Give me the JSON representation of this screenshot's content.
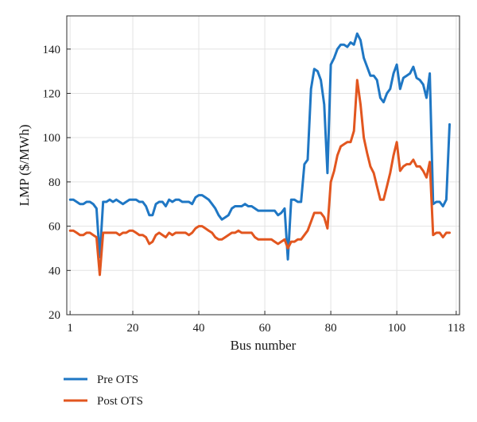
{
  "chart_data": {
    "type": "line",
    "title": "",
    "xlabel": "Bus number",
    "ylabel": "LMP ($/MWh)",
    "xlim": [
      0,
      119
    ],
    "ylim": [
      20,
      155
    ],
    "xticks": [
      1,
      20,
      40,
      60,
      80,
      100,
      118
    ],
    "yticks": [
      20,
      40,
      60,
      80,
      100,
      120,
      140
    ],
    "grid": true,
    "legend_position": "bottom-left",
    "series": [
      {
        "name": "Pre OTS",
        "color": "#1f77c4",
        "points": [
          [
            1,
            72
          ],
          [
            2,
            72
          ],
          [
            3,
            71
          ],
          [
            4,
            70
          ],
          [
            5,
            70
          ],
          [
            6,
            71
          ],
          [
            7,
            71
          ],
          [
            8,
            70
          ],
          [
            9,
            68
          ],
          [
            10,
            46
          ],
          [
            11,
            71
          ],
          [
            12,
            71
          ],
          [
            13,
            72
          ],
          [
            14,
            71
          ],
          [
            15,
            72
          ],
          [
            16,
            71
          ],
          [
            17,
            70
          ],
          [
            18,
            71
          ],
          [
            19,
            72
          ],
          [
            20,
            72
          ],
          [
            21,
            72
          ],
          [
            22,
            71
          ],
          [
            23,
            71
          ],
          [
            24,
            69
          ],
          [
            25,
            65
          ],
          [
            26,
            65
          ],
          [
            27,
            70
          ],
          [
            28,
            71
          ],
          [
            29,
            71
          ],
          [
            30,
            69
          ],
          [
            31,
            72
          ],
          [
            32,
            71
          ],
          [
            33,
            72
          ],
          [
            34,
            72
          ],
          [
            35,
            71
          ],
          [
            36,
            71
          ],
          [
            37,
            71
          ],
          [
            38,
            70
          ],
          [
            39,
            73
          ],
          [
            40,
            74
          ],
          [
            41,
            74
          ],
          [
            42,
            73
          ],
          [
            43,
            72
          ],
          [
            44,
            70
          ],
          [
            45,
            68
          ],
          [
            46,
            65
          ],
          [
            47,
            63
          ],
          [
            48,
            64
          ],
          [
            49,
            65
          ],
          [
            50,
            68
          ],
          [
            51,
            69
          ],
          [
            52,
            69
          ],
          [
            53,
            69
          ],
          [
            54,
            70
          ],
          [
            55,
            69
          ],
          [
            56,
            69
          ],
          [
            57,
            68
          ],
          [
            58,
            67
          ],
          [
            59,
            67
          ],
          [
            60,
            67
          ],
          [
            61,
            67
          ],
          [
            62,
            67
          ],
          [
            63,
            67
          ],
          [
            64,
            65
          ],
          [
            65,
            66
          ],
          [
            66,
            68
          ],
          [
            67,
            45
          ],
          [
            68,
            72
          ],
          [
            69,
            72
          ],
          [
            70,
            71
          ],
          [
            71,
            71
          ],
          [
            72,
            88
          ],
          [
            73,
            90
          ],
          [
            74,
            122
          ],
          [
            75,
            131
          ],
          [
            76,
            130
          ],
          [
            77,
            126
          ],
          [
            78,
            115
          ],
          [
            79,
            84
          ],
          [
            80,
            133
          ],
          [
            81,
            136
          ],
          [
            82,
            140
          ],
          [
            83,
            142
          ],
          [
            84,
            142
          ],
          [
            85,
            141
          ],
          [
            86,
            143
          ],
          [
            87,
            142
          ],
          [
            88,
            147
          ],
          [
            89,
            144
          ],
          [
            90,
            136
          ],
          [
            91,
            132
          ],
          [
            92,
            128
          ],
          [
            93,
            128
          ],
          [
            94,
            126
          ],
          [
            95,
            118
          ],
          [
            96,
            116
          ],
          [
            97,
            120
          ],
          [
            98,
            122
          ],
          [
            99,
            129
          ],
          [
            100,
            133
          ],
          [
            101,
            122
          ],
          [
            102,
            127
          ],
          [
            103,
            128
          ],
          [
            104,
            129
          ],
          [
            105,
            132
          ],
          [
            106,
            127
          ],
          [
            107,
            126
          ],
          [
            108,
            124
          ],
          [
            109,
            118
          ],
          [
            110,
            129
          ],
          [
            111,
            70
          ],
          [
            112,
            71
          ],
          [
            113,
            71
          ],
          [
            114,
            69
          ],
          [
            115,
            72
          ],
          [
            116,
            106
          ]
        ]
      },
      {
        "name": "Post OTS",
        "color": "#e2561f",
        "points": [
          [
            1,
            58
          ],
          [
            2,
            58
          ],
          [
            3,
            57
          ],
          [
            4,
            56
          ],
          [
            5,
            56
          ],
          [
            6,
            57
          ],
          [
            7,
            57
          ],
          [
            8,
            56
          ],
          [
            9,
            55
          ],
          [
            10,
            38
          ],
          [
            11,
            57
          ],
          [
            12,
            57
          ],
          [
            13,
            57
          ],
          [
            14,
            57
          ],
          [
            15,
            57
          ],
          [
            16,
            56
          ],
          [
            17,
            57
          ],
          [
            18,
            57
          ],
          [
            19,
            58
          ],
          [
            20,
            58
          ],
          [
            21,
            57
          ],
          [
            22,
            56
          ],
          [
            23,
            56
          ],
          [
            24,
            55
          ],
          [
            25,
            52
          ],
          [
            26,
            53
          ],
          [
            27,
            56
          ],
          [
            28,
            57
          ],
          [
            29,
            56
          ],
          [
            30,
            55
          ],
          [
            31,
            57
          ],
          [
            32,
            56
          ],
          [
            33,
            57
          ],
          [
            34,
            57
          ],
          [
            35,
            57
          ],
          [
            36,
            57
          ],
          [
            37,
            56
          ],
          [
            38,
            57
          ],
          [
            39,
            59
          ],
          [
            40,
            60
          ],
          [
            41,
            60
          ],
          [
            42,
            59
          ],
          [
            43,
            58
          ],
          [
            44,
            57
          ],
          [
            45,
            55
          ],
          [
            46,
            54
          ],
          [
            47,
            54
          ],
          [
            48,
            55
          ],
          [
            49,
            56
          ],
          [
            50,
            57
          ],
          [
            51,
            57
          ],
          [
            52,
            58
          ],
          [
            53,
            57
          ],
          [
            54,
            57
          ],
          [
            55,
            57
          ],
          [
            56,
            57
          ],
          [
            57,
            55
          ],
          [
            58,
            54
          ],
          [
            59,
            54
          ],
          [
            60,
            54
          ],
          [
            61,
            54
          ],
          [
            62,
            54
          ],
          [
            63,
            53
          ],
          [
            64,
            52
          ],
          [
            65,
            53
          ],
          [
            66,
            54
          ],
          [
            67,
            50
          ],
          [
            68,
            53
          ],
          [
            69,
            53
          ],
          [
            70,
            54
          ],
          [
            71,
            54
          ],
          [
            72,
            56
          ],
          [
            73,
            58
          ],
          [
            74,
            62
          ],
          [
            75,
            66
          ],
          [
            76,
            66
          ],
          [
            77,
            66
          ],
          [
            78,
            64
          ],
          [
            79,
            59
          ],
          [
            80,
            80
          ],
          [
            81,
            85
          ],
          [
            82,
            92
          ],
          [
            83,
            96
          ],
          [
            84,
            97
          ],
          [
            85,
            98
          ],
          [
            86,
            98
          ],
          [
            87,
            103
          ],
          [
            88,
            126
          ],
          [
            89,
            115
          ],
          [
            90,
            100
          ],
          [
            91,
            93
          ],
          [
            92,
            87
          ],
          [
            93,
            84
          ],
          [
            94,
            78
          ],
          [
            95,
            72
          ],
          [
            96,
            72
          ],
          [
            97,
            78
          ],
          [
            98,
            84
          ],
          [
            99,
            92
          ],
          [
            100,
            98
          ],
          [
            101,
            85
          ],
          [
            102,
            87
          ],
          [
            103,
            88
          ],
          [
            104,
            88
          ],
          [
            105,
            90
          ],
          [
            106,
            87
          ],
          [
            107,
            87
          ],
          [
            108,
            85
          ],
          [
            109,
            82
          ],
          [
            110,
            89
          ],
          [
            111,
            56
          ],
          [
            112,
            57
          ],
          [
            113,
            57
          ],
          [
            114,
            55
          ],
          [
            115,
            57
          ],
          [
            116,
            57
          ]
        ]
      }
    ]
  }
}
